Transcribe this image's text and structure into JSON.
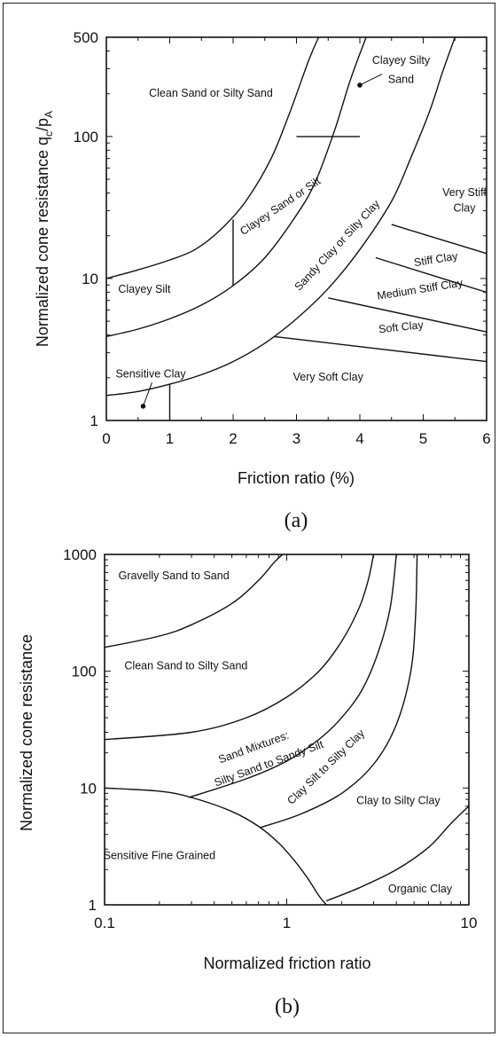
{
  "chart_data": [
    {
      "type": "line",
      "panel_label": "(a)",
      "xlabel": "Friction ratio (%)",
      "ylabel": "Normalized cone resistance q",
      "ylabel_sub": "c",
      "ylabel_mid": "/p",
      "ylabel_sub2": "A",
      "xscale": "linear",
      "yscale": "log",
      "xlim": [
        0,
        6
      ],
      "ylim": [
        1,
        500
      ],
      "xticks": [
        "0",
        "1",
        "2",
        "3",
        "4",
        "5",
        "6"
      ],
      "yticks": [
        {
          "value": 1,
          "label": "1"
        },
        {
          "value": 10,
          "label": "10"
        },
        {
          "value": 100,
          "label": "100"
        },
        {
          "value": 500,
          "label": "500"
        }
      ],
      "boundaries": [
        {
          "points": [
            [
              0,
              10
            ],
            [
              0.5,
              11.5
            ],
            [
              1.0,
              13.5
            ],
            [
              1.4,
              16
            ],
            [
              1.8,
              22
            ],
            [
              2.2,
              35
            ],
            [
              2.6,
              70
            ],
            [
              2.9,
              150
            ],
            [
              3.2,
              350
            ],
            [
              3.35,
              500
            ]
          ]
        },
        {
          "points": [
            [
              0,
              3.9
            ],
            [
              0.5,
              4.4
            ],
            [
              1.0,
              5.2
            ],
            [
              1.5,
              6.5
            ],
            [
              2.0,
              8.9
            ],
            [
              2.5,
              14
            ],
            [
              3.0,
              28
            ],
            [
              3.3,
              48
            ],
            [
              3.6,
              110
            ],
            [
              3.85,
              250
            ],
            [
              4.1,
              500
            ]
          ]
        },
        {
          "points": [
            [
              0,
              1.5
            ],
            [
              0.5,
              1.6
            ],
            [
              1.0,
              1.8
            ],
            [
              1.5,
              2.1
            ],
            [
              2.0,
              2.6
            ],
            [
              2.5,
              3.5
            ],
            [
              3.0,
              5.2
            ],
            [
              3.5,
              8.5
            ],
            [
              4.0,
              16
            ],
            [
              4.5,
              35
            ],
            [
              4.8,
              70
            ],
            [
              5.1,
              150
            ],
            [
              5.3,
              280
            ],
            [
              5.5,
              500
            ]
          ]
        },
        {
          "points": [
            [
              2,
              26
            ],
            [
              2,
              8.9
            ]
          ]
        },
        {
          "points": [
            [
              3,
              100
            ],
            [
              4,
              100
            ]
          ]
        },
        {
          "points": [
            [
              1.0,
              1.8
            ],
            [
              1.0,
              1.0
            ]
          ]
        },
        {
          "points": [
            [
              4.5,
              24
            ],
            [
              6,
              15
            ]
          ]
        },
        {
          "points": [
            [
              4.25,
              14
            ],
            [
              6,
              8
            ]
          ]
        },
        {
          "points": [
            [
              3.5,
              7.3
            ],
            [
              6,
              4.2
            ]
          ]
        },
        {
          "points": [
            [
              2.65,
              3.9
            ],
            [
              6,
              2.6
            ]
          ]
        }
      ],
      "annotations": [
        {
          "text": "Clean Sand or Silty Sand",
          "x": 1.65,
          "y": 200,
          "rotate": 0
        },
        {
          "text": "Clayey Silty",
          "x": 4.65,
          "y": 340,
          "rotate": 0
        },
        {
          "text": "Sand",
          "x": 4.65,
          "y": 250,
          "rotate": 0
        },
        {
          "text": "Clayey Sand or Silt",
          "x": 2.75,
          "y": 32,
          "rotate": -34
        },
        {
          "text": "Sandy Clay or Silty Clay",
          "x": 3.65,
          "y": 17,
          "rotate": -47
        },
        {
          "text": "Clayey Silt",
          "x": 0.6,
          "y": 8.3,
          "rotate": 0
        },
        {
          "text": "Very Stiff",
          "x": 5.65,
          "y": 40,
          "rotate": 0
        },
        {
          "text": "Clay",
          "x": 5.65,
          "y": 31,
          "rotate": 0
        },
        {
          "text": "Stiff Clay",
          "x": 5.2,
          "y": 13.5,
          "rotate": -9
        },
        {
          "text": "Medium Stiff Clay",
          "x": 4.95,
          "y": 8.3,
          "rotate": -9
        },
        {
          "text": "Soft Clay",
          "x": 4.65,
          "y": 4.5,
          "rotate": -6
        },
        {
          "text": "Sensitive Clay",
          "x": 0.7,
          "y": 2.1,
          "rotate": 0
        },
        {
          "text": "Very Soft Clay",
          "x": 3.5,
          "y": 2.0,
          "rotate": 0
        }
      ],
      "markers": [
        {
          "x": 4.0,
          "y": 230,
          "label_x": 4.35,
          "label_y": 275
        },
        {
          "x": 0.58,
          "y": 1.26,
          "label_x": 0.72,
          "label_y": 1.85
        }
      ]
    },
    {
      "type": "line",
      "panel_label": "(b)",
      "xlabel": "Normalized friction ratio",
      "ylabel": "Normalized cone resistance",
      "xscale": "log",
      "yscale": "log",
      "xlim": [
        0.1,
        10
      ],
      "ylim": [
        1,
        1000
      ],
      "xticks": [
        {
          "value": 0.1,
          "label": "0.1"
        },
        {
          "value": 1,
          "label": "1"
        },
        {
          "value": 10,
          "label": "10"
        }
      ],
      "yticks": [
        {
          "value": 1,
          "label": "1"
        },
        {
          "value": 10,
          "label": "10"
        },
        {
          "value": 100,
          "label": "100"
        },
        {
          "value": 1000,
          "label": "1000"
        }
      ],
      "boundaries": [
        {
          "points": [
            [
              0.1,
              160
            ],
            [
              0.2,
              200
            ],
            [
              0.3,
              250
            ],
            [
              0.5,
              380
            ],
            [
              0.7,
              600
            ],
            [
              0.85,
              850
            ],
            [
              0.95,
              1000
            ]
          ]
        },
        {
          "points": [
            [
              0.1,
              26
            ],
            [
              0.3,
              30
            ],
            [
              0.6,
              40
            ],
            [
              1.0,
              60
            ],
            [
              1.5,
              100
            ],
            [
              2.0,
              180
            ],
            [
              2.5,
              350
            ],
            [
              2.8,
              600
            ],
            [
              3.0,
              1000
            ]
          ]
        },
        {
          "points": [
            [
              0.29,
              8.3
            ],
            [
              0.6,
              12
            ],
            [
              1.0,
              17
            ],
            [
              1.5,
              26
            ],
            [
              2.0,
              40
            ],
            [
              2.6,
              70
            ],
            [
              3.2,
              150
            ],
            [
              3.7,
              350
            ],
            [
              4.0,
              1000
            ]
          ]
        },
        {
          "points": [
            [
              0.72,
              4.6
            ],
            [
              1.2,
              6.0
            ],
            [
              2.0,
              9.0
            ],
            [
              3.0,
              16
            ],
            [
              4.0,
              35
            ],
            [
              4.8,
              100
            ],
            [
              5.1,
              300
            ],
            [
              5.2,
              1000
            ]
          ]
        },
        {
          "points": [
            [
              0.1,
              10
            ],
            [
              0.2,
              9.4
            ],
            [
              0.3,
              8.3
            ],
            [
              0.5,
              6.3
            ],
            [
              0.7,
              4.7
            ],
            [
              0.9,
              3.4
            ],
            [
              1.1,
              2.4
            ],
            [
              1.3,
              1.7
            ],
            [
              1.5,
              1.2
            ],
            [
              1.65,
              1.0
            ]
          ]
        },
        {
          "points": [
            [
              1.65,
              1.08
            ],
            [
              2.5,
              1.4
            ],
            [
              4.0,
              2.0
            ],
            [
              6.0,
              3.1
            ],
            [
              8.0,
              5.0
            ],
            [
              10.0,
              7.0
            ]
          ]
        }
      ],
      "annotations": [
        {
          "text": "Gravelly Sand to Sand",
          "x": 0.24,
          "y": 650,
          "rotate": 0
        },
        {
          "text": "Clean Sand to Silty Sand",
          "x": 0.28,
          "y": 110,
          "rotate": 0
        },
        {
          "text": "Sand Mixtures:",
          "x": 0.66,
          "y": 22,
          "rotate": -20
        },
        {
          "text": "Silty Sand to Sandy Silt",
          "x": 0.8,
          "y": 16,
          "rotate": -20
        },
        {
          "text": "Clay Silt to Silty Clay",
          "x": 1.65,
          "y": 15,
          "rotate": -44
        },
        {
          "text": "Clay to Silty Clay",
          "x": 4.1,
          "y": 7.7,
          "rotate": 0
        },
        {
          "text": "Sensitive Fine Grained",
          "x": 0.2,
          "y": 2.6,
          "rotate": 0
        },
        {
          "text": "Organic Clay",
          "x": 5.4,
          "y": 1.35,
          "rotate": 0
        }
      ]
    }
  ]
}
